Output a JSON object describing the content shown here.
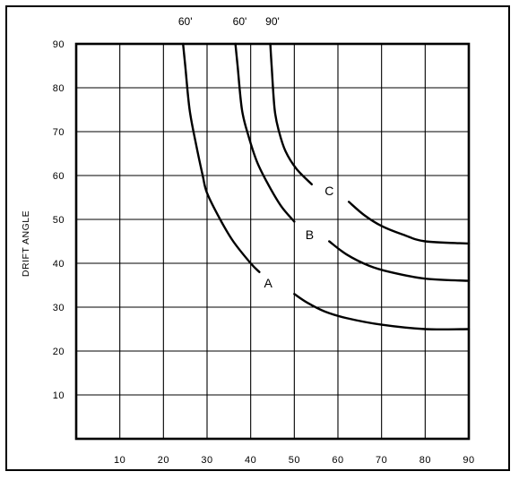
{
  "chart_data": {
    "type": "line",
    "title": "",
    "xlabel": "",
    "ylabel": "DRIFT ANGLE",
    "xlim": [
      0,
      90
    ],
    "ylim": [
      0,
      90
    ],
    "x_ticks": [
      10,
      20,
      30,
      40,
      50,
      60,
      70,
      80,
      90
    ],
    "y_ticks": [
      10,
      20,
      30,
      40,
      50,
      60,
      70,
      80,
      90
    ],
    "grid": true,
    "top_labels": [
      {
        "text": "60'",
        "x": 25
      },
      {
        "text": "60'",
        "x": 37.5
      },
      {
        "text": "90'",
        "x": 45
      }
    ],
    "series": [
      {
        "name": "A",
        "label_at": [
          44,
          35.5
        ],
        "segments": [
          [
            [
              24.5,
              90
            ],
            [
              25,
              85
            ],
            [
              26,
              75
            ],
            [
              27.5,
              67
            ],
            [
              29,
              60
            ],
            [
              30,
              56
            ],
            [
              33,
              50
            ],
            [
              36,
              45
            ],
            [
              40,
              40
            ],
            [
              42,
              38
            ]
          ],
          [
            [
              50,
              33
            ],
            [
              53,
              31
            ],
            [
              57,
              29
            ],
            [
              62,
              27.5
            ],
            [
              70,
              26
            ],
            [
              80,
              25
            ],
            [
              90,
              25
            ]
          ]
        ]
      },
      {
        "name": "B",
        "label_at": [
          53.5,
          46.5
        ],
        "segments": [
          [
            [
              36.5,
              90
            ],
            [
              37,
              85
            ],
            [
              38,
              75
            ],
            [
              39.5,
              69
            ],
            [
              41.5,
              63
            ],
            [
              44,
              58
            ],
            [
              47,
              53
            ],
            [
              50,
              49.5
            ]
          ],
          [
            [
              58,
              45
            ],
            [
              62,
              42
            ],
            [
              67,
              39.5
            ],
            [
              72,
              38
            ],
            [
              80,
              36.5
            ],
            [
              90,
              36
            ]
          ]
        ]
      },
      {
        "name": "C",
        "label_at": [
          58,
          56.5
        ],
        "segments": [
          [
            [
              44.5,
              90
            ],
            [
              44.8,
              85
            ],
            [
              45.5,
              75
            ],
            [
              46.5,
              70
            ],
            [
              48,
              65.5
            ],
            [
              50.5,
              61.5
            ],
            [
              54,
              58
            ]
          ],
          [
            [
              62.5,
              54
            ],
            [
              66,
              51
            ],
            [
              70,
              48.5
            ],
            [
              75,
              46.5
            ],
            [
              80,
              45
            ],
            [
              90,
              44.5
            ]
          ]
        ]
      }
    ]
  }
}
